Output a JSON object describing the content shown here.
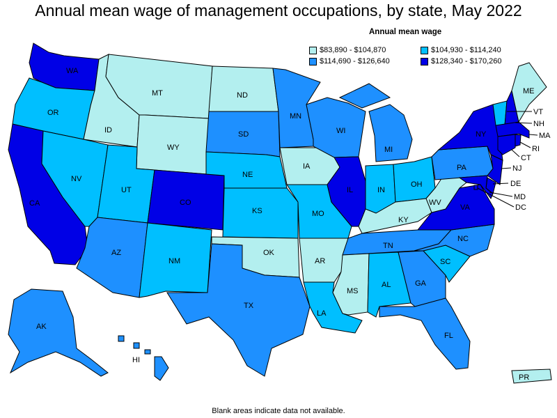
{
  "title": "Annual mean wage of management occupations, by state, May 2022",
  "legend": {
    "title": "Annual mean wage",
    "items": [
      {
        "label": "$83,890 - $104,870",
        "color": "#b3efef"
      },
      {
        "label": "$104,930 - $114,240",
        "color": "#00bfff"
      },
      {
        "label": "$114,690 - $126,640",
        "color": "#1e90ff"
      },
      {
        "label": "$128,340 - $170,260",
        "color": "#0000e6"
      }
    ]
  },
  "footnote": "Blank areas indicate data not available.",
  "states": [
    {
      "abbr": "WA",
      "bin": 3
    },
    {
      "abbr": "OR",
      "bin": 1
    },
    {
      "abbr": "CA",
      "bin": 3
    },
    {
      "abbr": "ID",
      "bin": 0
    },
    {
      "abbr": "NV",
      "bin": 1
    },
    {
      "abbr": "MT",
      "bin": 0
    },
    {
      "abbr": "WY",
      "bin": 0
    },
    {
      "abbr": "UT",
      "bin": 1
    },
    {
      "abbr": "AZ",
      "bin": 2
    },
    {
      "abbr": "CO",
      "bin": 3
    },
    {
      "abbr": "NM",
      "bin": 1
    },
    {
      "abbr": "ND",
      "bin": 0
    },
    {
      "abbr": "SD",
      "bin": 2
    },
    {
      "abbr": "NE",
      "bin": 1
    },
    {
      "abbr": "KS",
      "bin": 1
    },
    {
      "abbr": "OK",
      "bin": 0
    },
    {
      "abbr": "TX",
      "bin": 2
    },
    {
      "abbr": "MN",
      "bin": 2
    },
    {
      "abbr": "IA",
      "bin": 0
    },
    {
      "abbr": "MO",
      "bin": 1
    },
    {
      "abbr": "AR",
      "bin": 0
    },
    {
      "abbr": "LA",
      "bin": 1
    },
    {
      "abbr": "WI",
      "bin": 2
    },
    {
      "abbr": "IL",
      "bin": 3
    },
    {
      "abbr": "MI",
      "bin": 2
    },
    {
      "abbr": "IN",
      "bin": 1
    },
    {
      "abbr": "OH",
      "bin": 1
    },
    {
      "abbr": "KY",
      "bin": 0
    },
    {
      "abbr": "TN",
      "bin": 2
    },
    {
      "abbr": "MS",
      "bin": 0
    },
    {
      "abbr": "AL",
      "bin": 1
    },
    {
      "abbr": "GA",
      "bin": 2
    },
    {
      "abbr": "FL",
      "bin": 2
    },
    {
      "abbr": "SC",
      "bin": 1
    },
    {
      "abbr": "NC",
      "bin": 2
    },
    {
      "abbr": "VA",
      "bin": 3
    },
    {
      "abbr": "WV",
      "bin": 0
    },
    {
      "abbr": "PA",
      "bin": 2
    },
    {
      "abbr": "NY",
      "bin": 3
    },
    {
      "abbr": "VT",
      "bin": 1
    },
    {
      "abbr": "NH",
      "bin": 3
    },
    {
      "abbr": "ME",
      "bin": 0
    },
    {
      "abbr": "MA",
      "bin": 3
    },
    {
      "abbr": "RI",
      "bin": 3
    },
    {
      "abbr": "CT",
      "bin": 3
    },
    {
      "abbr": "NJ",
      "bin": 3
    },
    {
      "abbr": "DE",
      "bin": 3
    },
    {
      "abbr": "MD",
      "bin": 3
    },
    {
      "abbr": "DC",
      "bin": 3
    },
    {
      "abbr": "AK",
      "bin": 2
    },
    {
      "abbr": "HI",
      "bin": 2
    },
    {
      "abbr": "PR",
      "bin": 0
    }
  ]
}
